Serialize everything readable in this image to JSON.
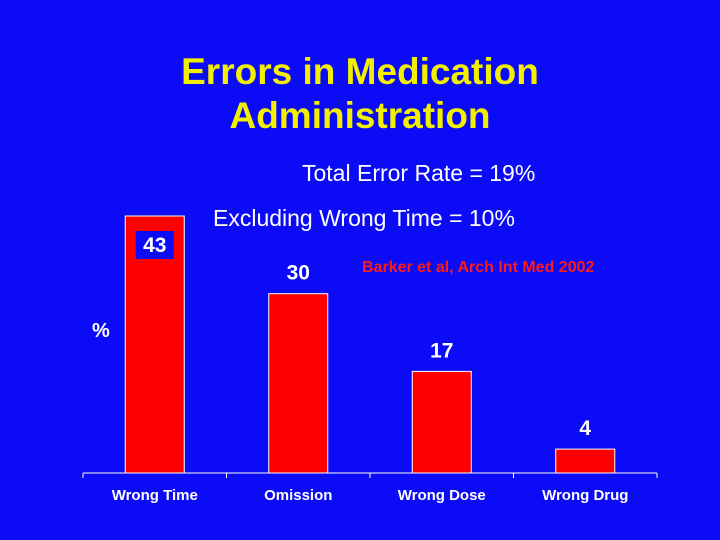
{
  "title_lines": [
    "Errors in Medication",
    "Administration"
  ],
  "subtitles": [
    "Total Error Rate = 19%",
    "Excluding Wrong Time = 10%"
  ],
  "citation": "Barker et al, Arch Int Med 2002",
  "colors": {
    "background": "#0b0bf5",
    "title": "#f2f000",
    "bar": "#ff0000",
    "citation": "#ff1a1a",
    "text": "#ffffff"
  },
  "chart_data": {
    "type": "bar",
    "title": "Errors in Medication Administration",
    "categories": [
      "Wrong Time",
      "Omission",
      "Wrong Dose",
      "Wrong Drug"
    ],
    "values": [
      43,
      30,
      17,
      4
    ],
    "ylabel": "%",
    "xlabel": "",
    "ylim": [
      0,
      43
    ],
    "grid": false,
    "data_labels": [
      "43",
      "30",
      "17",
      "4"
    ]
  }
}
